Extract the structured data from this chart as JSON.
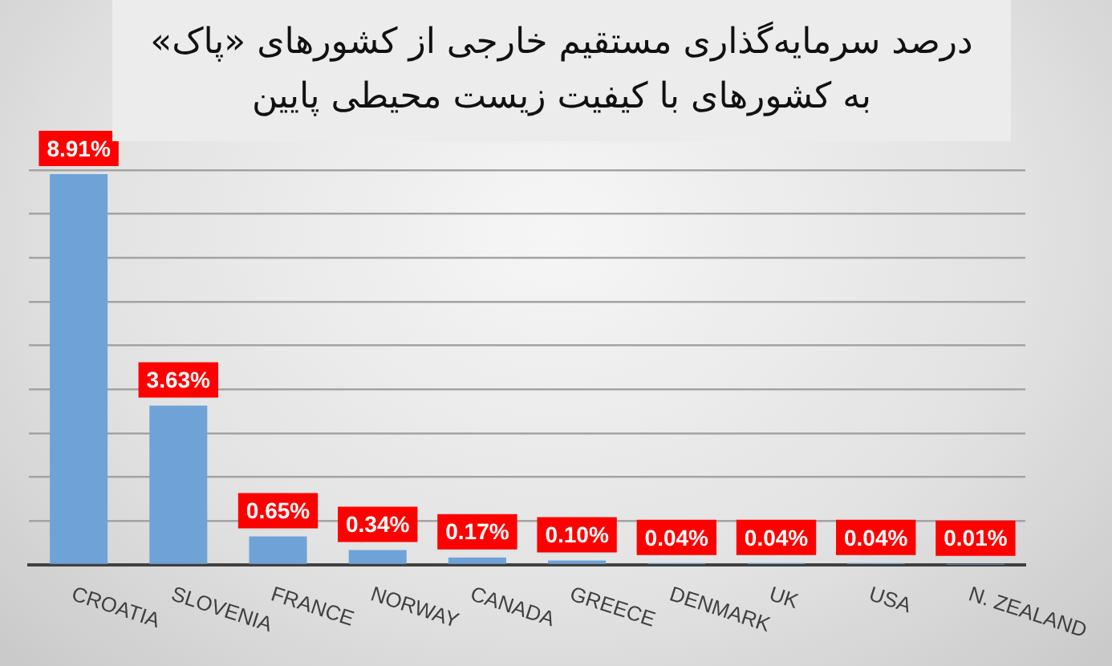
{
  "chart_data": {
    "type": "bar",
    "title": "درصد سرمایه‌گذاری مستقیم خارجی از کشورهای «پاک»\nبه کشورهای با کیفیت زیست محیطی پایین",
    "categories": [
      "CROATIA",
      "SLOVENIA",
      "FRANCE",
      "NORWAY",
      "CANADA",
      "GREECE",
      "DENMARK",
      "UK",
      "USA",
      "N. ZEALAND"
    ],
    "values": [
      8.91,
      3.63,
      0.65,
      0.34,
      0.17,
      0.1,
      0.04,
      0.04,
      0.04,
      0.01
    ],
    "color": "#6fa3d7",
    "value_labels": [
      "8.91%",
      "3.63%",
      "0.65%",
      "0.34%",
      "0.17%",
      "0.10%",
      "0.04%",
      "0.04%",
      "0.04%",
      "0.01%"
    ],
    "ylim": [
      0,
      9
    ],
    "yticks": [
      {
        "value": 0,
        "label": null
      },
      {
        "value": 1,
        "label": null
      },
      {
        "value": 2,
        "label": null
      },
      {
        "value": 3,
        "label": null
      },
      {
        "value": 4,
        "label": null
      },
      {
        "value": 5,
        "label": null
      },
      {
        "value": 6,
        "label": null
      },
      {
        "value": 7,
        "label": null
      },
      {
        "value": 8,
        "label": null
      },
      {
        "value": 9,
        "label": null
      }
    ],
    "grid": "y",
    "tick_labels": "x"
  }
}
